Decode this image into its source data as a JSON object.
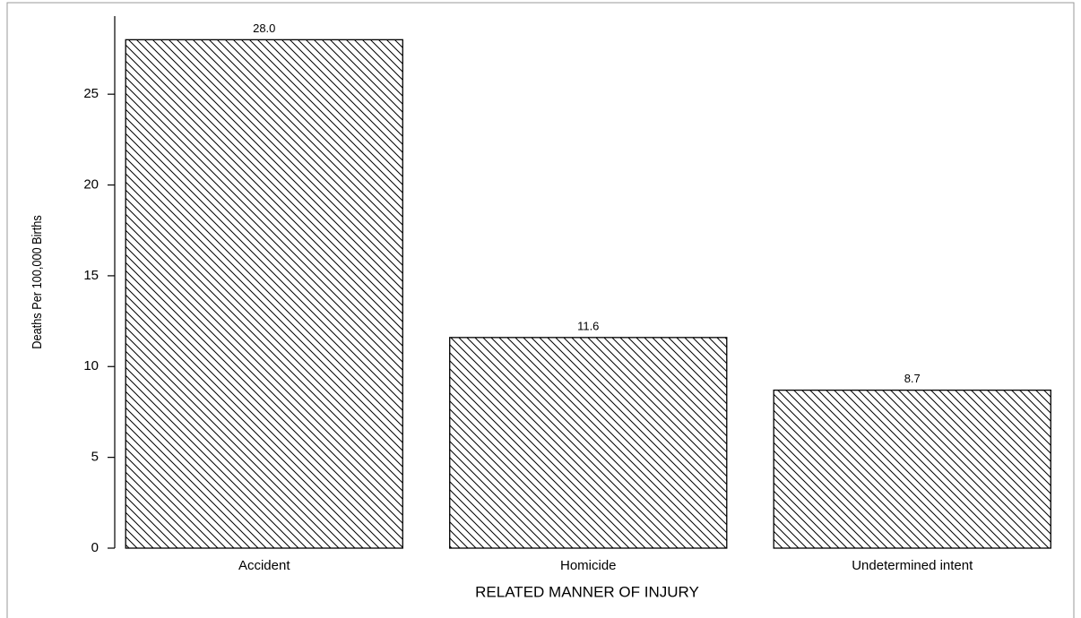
{
  "chart_data": {
    "type": "bar",
    "categories": [
      "Accident",
      "Homicide",
      "Undetermined intent"
    ],
    "values": [
      28.0,
      11.6,
      8.7
    ],
    "value_labels": [
      "28.0",
      "11.6",
      "8.7"
    ],
    "xlabel": "RELATED MANNER OF INJURY",
    "ylabel": "Deaths Per 100,000 Births",
    "ylim": [
      0,
      29.3
    ],
    "yticks": [
      0,
      5,
      10,
      15,
      20,
      25
    ],
    "color": "#000000",
    "pattern": "hatch",
    "grid": false
  }
}
